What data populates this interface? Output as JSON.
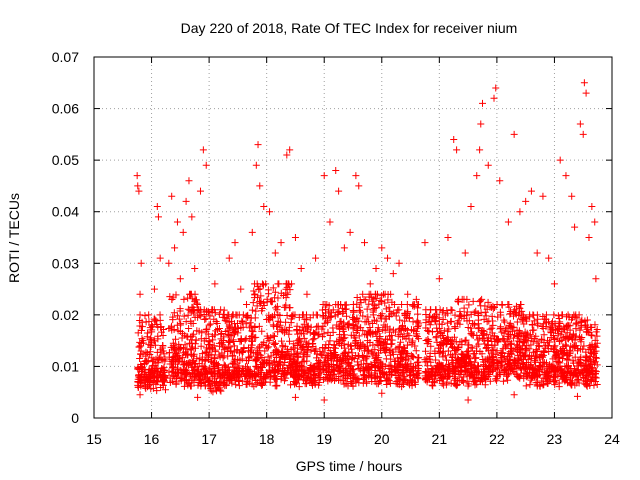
{
  "chart_data": {
    "type": "scatter",
    "title": "Day 220 of 2018, Rate Of TEC Index for receiver nium",
    "xlabel": "GPS time / hours",
    "ylabel": "ROTI / TECUs",
    "xlim": [
      15,
      24
    ],
    "ylim": [
      0,
      0.07
    ],
    "grid": true,
    "marker": "+",
    "marker_color": "#ff0000",
    "x_ticks": [
      15,
      16,
      17,
      18,
      19,
      20,
      21,
      22,
      23,
      24
    ],
    "x_tick_labels": [
      "15",
      "16",
      "17",
      "18",
      "19",
      "20",
      "21",
      "22",
      "23",
      "24"
    ],
    "y_ticks": [
      0,
      0.01,
      0.02,
      0.03,
      0.04,
      0.05,
      0.06,
      0.07
    ],
    "y_tick_labels": [
      "0",
      "0.01",
      "0.02",
      "0.03",
      "0.04",
      "0.05",
      "0.06",
      "0.07"
    ],
    "series": [
      {
        "name": "ROTI",
        "points": [
          [
            15.75,
            0.047
          ],
          [
            15.76,
            0.045
          ],
          [
            15.78,
            0.044
          ],
          [
            15.8,
            0.024
          ],
          [
            15.82,
            0.03
          ],
          [
            15.85,
            0.015
          ],
          [
            15.9,
            0.012
          ],
          [
            15.95,
            0.02
          ],
          [
            16.0,
            0.018
          ],
          [
            16.05,
            0.025
          ],
          [
            16.1,
            0.041
          ],
          [
            16.12,
            0.039
          ],
          [
            16.15,
            0.031
          ],
          [
            16.2,
            0.016
          ],
          [
            16.3,
            0.03
          ],
          [
            16.35,
            0.043
          ],
          [
            16.4,
            0.033
          ],
          [
            16.45,
            0.038
          ],
          [
            16.5,
            0.027
          ],
          [
            16.55,
            0.036
          ],
          [
            16.6,
            0.042
          ],
          [
            16.65,
            0.046
          ],
          [
            16.7,
            0.039
          ],
          [
            16.75,
            0.029
          ],
          [
            16.85,
            0.044
          ],
          [
            16.9,
            0.052
          ],
          [
            16.95,
            0.049
          ],
          [
            17.0,
            0.018
          ],
          [
            17.1,
            0.026
          ],
          [
            17.2,
            0.021
          ],
          [
            17.35,
            0.031
          ],
          [
            17.45,
            0.034
          ],
          [
            17.55,
            0.025
          ],
          [
            17.65,
            0.022
          ],
          [
            17.75,
            0.036
          ],
          [
            17.82,
            0.049
          ],
          [
            17.85,
            0.053
          ],
          [
            17.88,
            0.045
          ],
          [
            17.95,
            0.041
          ],
          [
            18.05,
            0.04
          ],
          [
            18.15,
            0.032
          ],
          [
            18.25,
            0.034
          ],
          [
            18.35,
            0.051
          ],
          [
            18.4,
            0.052
          ],
          [
            18.5,
            0.035
          ],
          [
            18.6,
            0.029
          ],
          [
            18.7,
            0.024
          ],
          [
            18.85,
            0.031
          ],
          [
            19.0,
            0.047
          ],
          [
            19.1,
            0.038
          ],
          [
            19.2,
            0.048
          ],
          [
            19.25,
            0.044
          ],
          [
            19.35,
            0.033
          ],
          [
            19.45,
            0.036
          ],
          [
            19.55,
            0.047
          ],
          [
            19.6,
            0.045
          ],
          [
            19.7,
            0.034
          ],
          [
            19.8,
            0.026
          ],
          [
            19.9,
            0.029
          ],
          [
            20.0,
            0.033
          ],
          [
            20.1,
            0.031
          ],
          [
            20.2,
            0.028
          ],
          [
            20.3,
            0.03
          ],
          [
            20.45,
            0.024
          ],
          [
            20.6,
            0.023
          ],
          [
            20.75,
            0.034
          ],
          [
            20.85,
            0.021
          ],
          [
            21.0,
            0.027
          ],
          [
            21.15,
            0.035
          ],
          [
            21.25,
            0.054
          ],
          [
            21.3,
            0.052
          ],
          [
            21.45,
            0.032
          ],
          [
            21.55,
            0.041
          ],
          [
            21.65,
            0.047
          ],
          [
            21.7,
            0.052
          ],
          [
            21.72,
            0.057
          ],
          [
            21.75,
            0.061
          ],
          [
            21.85,
            0.049
          ],
          [
            21.95,
            0.062
          ],
          [
            21.98,
            0.064
          ],
          [
            22.05,
            0.046
          ],
          [
            22.2,
            0.038
          ],
          [
            22.3,
            0.055
          ],
          [
            22.4,
            0.04
          ],
          [
            22.5,
            0.042
          ],
          [
            22.6,
            0.044
          ],
          [
            22.7,
            0.032
          ],
          [
            22.8,
            0.043
          ],
          [
            22.9,
            0.031
          ],
          [
            23.0,
            0.026
          ],
          [
            23.1,
            0.05
          ],
          [
            23.2,
            0.047
          ],
          [
            23.3,
            0.043
          ],
          [
            23.35,
            0.037
          ],
          [
            23.45,
            0.057
          ],
          [
            23.5,
            0.055
          ],
          [
            23.52,
            0.065
          ],
          [
            23.55,
            0.063
          ],
          [
            23.6,
            0.035
          ],
          [
            23.65,
            0.041
          ],
          [
            23.7,
            0.038
          ],
          [
            23.72,
            0.027
          ],
          [
            15.8,
            0.0045
          ],
          [
            16.8,
            0.004
          ],
          [
            18.5,
            0.004
          ],
          [
            19.0,
            0.0035
          ],
          [
            21.5,
            0.0035
          ],
          [
            22.3,
            0.0045
          ],
          [
            23.4,
            0.0042
          ],
          [
            20.0,
            0.0048
          ]
        ],
        "dense_bands": [
          {
            "x_range": [
              15.75,
              15.95
            ],
            "y_range": [
              0.005,
              0.02
            ]
          },
          {
            "x_range": [
              15.95,
              16.25
            ],
            "y_range": [
              0.005,
              0.02
            ]
          },
          {
            "x_range": [
              16.3,
              16.8
            ],
            "y_range": [
              0.006,
              0.024
            ]
          },
          {
            "x_range": [
              16.8,
              17.3
            ],
            "y_range": [
              0.005,
              0.021
            ]
          },
          {
            "x_range": [
              17.3,
              17.75
            ],
            "y_range": [
              0.006,
              0.02
            ]
          },
          {
            "x_range": [
              17.75,
              18.45
            ],
            "y_range": [
              0.006,
              0.026
            ]
          },
          {
            "x_range": [
              18.45,
              18.95
            ],
            "y_range": [
              0.006,
              0.02
            ]
          },
          {
            "x_range": [
              18.95,
              19.55
            ],
            "y_range": [
              0.006,
              0.022
            ]
          },
          {
            "x_range": [
              19.55,
              20.2
            ],
            "y_range": [
              0.006,
              0.024
            ]
          },
          {
            "x_range": [
              20.2,
              20.65
            ],
            "y_range": [
              0.006,
              0.022
            ]
          },
          {
            "x_range": [
              20.75,
              21.3
            ],
            "y_range": [
              0.006,
              0.021
            ]
          },
          {
            "x_range": [
              21.3,
              21.9
            ],
            "y_range": [
              0.006,
              0.023
            ]
          },
          {
            "x_range": [
              21.9,
              22.5
            ],
            "y_range": [
              0.007,
              0.022
            ]
          },
          {
            "x_range": [
              22.5,
              23.0
            ],
            "y_range": [
              0.006,
              0.02
            ]
          },
          {
            "x_range": [
              23.0,
              23.45
            ],
            "y_range": [
              0.006,
              0.02
            ]
          },
          {
            "x_range": [
              23.45,
              23.75
            ],
            "y_range": [
              0.006,
              0.019
            ]
          }
        ]
      }
    ]
  }
}
